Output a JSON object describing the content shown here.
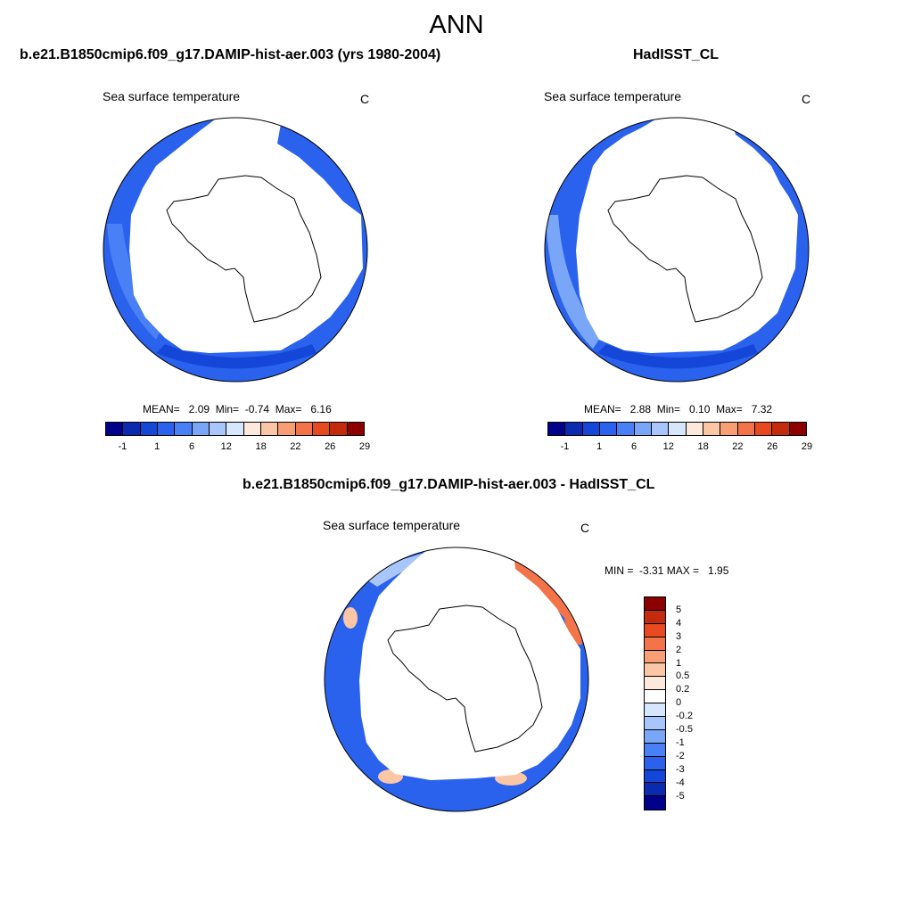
{
  "main_title": "ANN",
  "panels": [
    {
      "title": "b.e21.B1850cmip6.f09_g17.DAMIP-hist-aer.003 (yrs 1980-2004)",
      "variable": "Sea surface temperature",
      "units": "C",
      "stats": "MEAN=   2.09  Min=  -0.74  Max=   6.16"
    },
    {
      "title": "HadISST_CL",
      "variable": "Sea surface temperature",
      "units": "C",
      "stats": "MEAN=   2.88  Min=   0.10  Max=   7.32"
    },
    {
      "title": "b.e21.B1850cmip6.f09_g17.DAMIP-hist-aer.003 - HadISST_CL",
      "variable": "Sea surface temperature",
      "units": "C",
      "stats": "MIN =  -3.31 MAX =   1.95"
    }
  ],
  "abs_colorbar": {
    "colors": [
      "#00008b",
      "#0a2ab0",
      "#1446d8",
      "#2a62ee",
      "#4a80f5",
      "#7aa6f8",
      "#a8c6fb",
      "#d6e6fd",
      "#fde8dc",
      "#fbc6a6",
      "#f89e74",
      "#f4744a",
      "#e84a20",
      "#c42a0c",
      "#8b0000"
    ],
    "tick_labels": [
      "-1",
      "1",
      "6",
      "12",
      "18",
      "22",
      "26",
      "29"
    ]
  },
  "diff_colorbar": {
    "colors": [
      "#8b0000",
      "#c42a0c",
      "#e84a20",
      "#f4744a",
      "#f89e74",
      "#fbc6a6",
      "#fde8dc",
      "#ffffff",
      "#d6e6fd",
      "#a8c6fb",
      "#7aa6f8",
      "#4a80f5",
      "#2a62ee",
      "#1446d8",
      "#0a2ab0",
      "#00008b"
    ],
    "tick_labels": [
      "5",
      "4",
      "3",
      "2",
      "1",
      "0.5",
      "0.2",
      "0",
      "-0.2",
      "-0.5",
      "-1",
      "-2",
      "-3",
      "-4",
      "-5"
    ]
  },
  "colors": {
    "ocean_model": "#2a62ee",
    "ocean_model_light": "#4a80f5",
    "ocean_obs": "#2a62ee",
    "ocean_obs_light": "#7aa6f8",
    "diff_blue": "#2a62ee",
    "diff_orange": "#f4744a"
  }
}
